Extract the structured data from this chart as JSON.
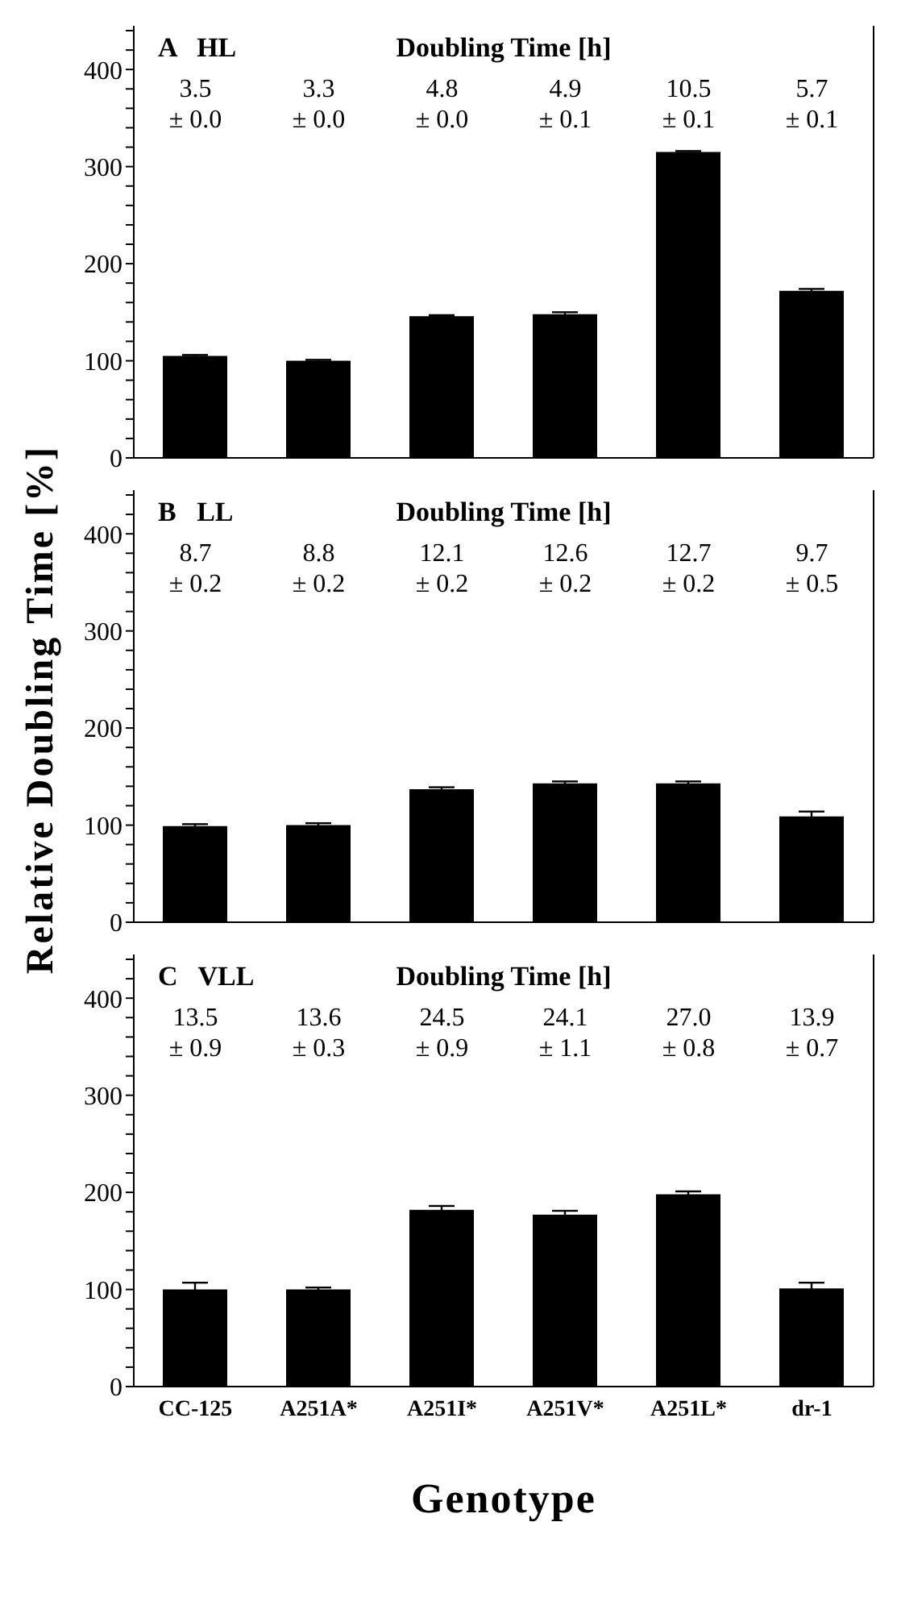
{
  "chart_data": [
    {
      "type": "bar",
      "title": "A   HL",
      "subtitle": "Doubling Time [h]",
      "categories": [
        null,
        null,
        null,
        null,
        null,
        null
      ],
      "values": [
        105,
        100,
        146,
        148,
        315,
        172
      ],
      "errors": [
        1,
        1,
        1,
        2,
        1,
        2
      ],
      "color": "#000000",
      "ylim": [
        0,
        445
      ],
      "yticks": [
        0,
        {
          "value": 20,
          "label": null
        },
        {
          "value": 40,
          "label": null
        },
        {
          "value": 60,
          "label": null
        },
        {
          "value": 80,
          "label": null
        },
        100,
        {
          "value": 120,
          "label": null
        },
        {
          "value": 140,
          "label": null
        },
        {
          "value": 160,
          "label": null
        },
        {
          "value": 180,
          "label": null
        },
        200,
        {
          "value": 220,
          "label": null
        },
        {
          "value": 240,
          "label": null
        },
        {
          "value": 260,
          "label": null
        },
        {
          "value": 280,
          "label": null
        },
        300,
        {
          "value": 320,
          "label": null
        },
        {
          "value": 340,
          "label": null
        },
        {
          "value": 360,
          "label": null
        },
        {
          "value": 380,
          "label": null
        },
        400,
        {
          "value": 420,
          "label": null
        },
        {
          "value": 440,
          "label": null
        }
      ],
      "tick_labels": "y",
      "annotations": [
        "3.5\n± 0.0",
        "3.3\n± 0.0",
        "4.8\n± 0.0",
        "4.9\n± 0.1",
        "10.5\n± 0.1",
        "5.7\n± 0.1"
      ]
    },
    {
      "type": "bar",
      "title": "B   LL",
      "subtitle": "Doubling Time [h]",
      "ylabel": "Relative Doubling Time [%]",
      "categories": [
        null,
        null,
        null,
        null,
        null,
        null
      ],
      "values": [
        99,
        100,
        137,
        143,
        143,
        109
      ],
      "errors": [
        2,
        2,
        2,
        2,
        2,
        5
      ],
      "color": "#000000",
      "ylim": [
        0,
        445
      ],
      "yticks": [
        0,
        {
          "value": 20,
          "label": null
        },
        {
          "value": 40,
          "label": null
        },
        {
          "value": 60,
          "label": null
        },
        {
          "value": 80,
          "label": null
        },
        100,
        {
          "value": 120,
          "label": null
        },
        {
          "value": 140,
          "label": null
        },
        {
          "value": 160,
          "label": null
        },
        {
          "value": 180,
          "label": null
        },
        200,
        {
          "value": 220,
          "label": null
        },
        {
          "value": 240,
          "label": null
        },
        {
          "value": 260,
          "label": null
        },
        {
          "value": 280,
          "label": null
        },
        300,
        {
          "value": 320,
          "label": null
        },
        {
          "value": 340,
          "label": null
        },
        {
          "value": 360,
          "label": null
        },
        {
          "value": 380,
          "label": null
        },
        400,
        {
          "value": 420,
          "label": null
        },
        {
          "value": 440,
          "label": null
        }
      ],
      "tick_labels": "y",
      "annotations": [
        "8.7\n± 0.2",
        "8.8\n± 0.2",
        "12.1\n± 0.2",
        "12.6\n± 0.2",
        "12.7\n± 0.2",
        "9.7\n± 0.5"
      ]
    },
    {
      "type": "bar",
      "title": "C   VLL",
      "subtitle": "Doubling Time [h]",
      "xlabel": "Genotype",
      "categories": [
        "CC-125",
        "A251A*",
        "A251I*",
        "A251V*",
        "A251L*",
        "dr-1"
      ],
      "values": [
        100,
        100,
        182,
        177,
        198,
        101
      ],
      "errors": [
        7,
        2,
        4,
        4,
        3,
        6
      ],
      "color": "#000000",
      "ylim": [
        0,
        445
      ],
      "yticks": [
        0,
        {
          "value": 20,
          "label": null
        },
        {
          "value": 40,
          "label": null
        },
        {
          "value": 60,
          "label": null
        },
        {
          "value": 80,
          "label": null
        },
        100,
        {
          "value": 120,
          "label": null
        },
        {
          "value": 140,
          "label": null
        },
        {
          "value": 160,
          "label": null
        },
        {
          "value": 180,
          "label": null
        },
        200,
        {
          "value": 220,
          "label": null
        },
        {
          "value": 240,
          "label": null
        },
        {
          "value": 260,
          "label": null
        },
        {
          "value": 280,
          "label": null
        },
        300,
        {
          "value": 320,
          "label": null
        },
        {
          "value": 340,
          "label": null
        },
        {
          "value": 360,
          "label": null
        },
        {
          "value": 380,
          "label": null
        },
        400,
        {
          "value": 420,
          "label": null
        },
        {
          "value": 440,
          "label": null
        }
      ],
      "annotations": [
        "13.5\n± 0.9",
        "13.6\n± 0.3",
        "24.5\n± 0.9",
        "24.1\n± 1.1",
        "27.0\n± 0.8",
        "13.9\n± 0.7"
      ]
    }
  ]
}
